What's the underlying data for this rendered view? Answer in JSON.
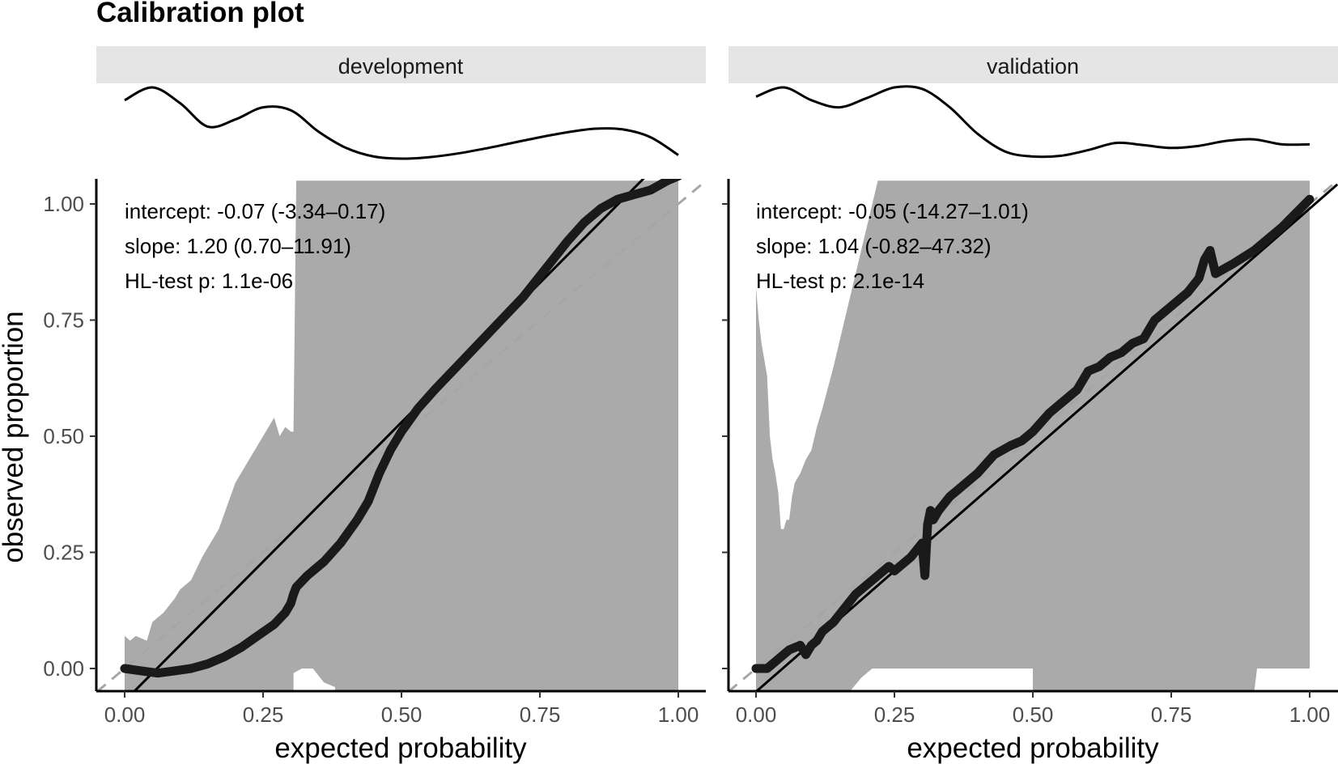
{
  "title": "Calibration plot",
  "xlabel": "expected probability",
  "ylabel": "observed proportion",
  "colors": {
    "strip_bg": "#e5e5e5",
    "ci_ribbon": "#aaaaaa",
    "curve": "#1a1a1a",
    "fit_line": "#000000",
    "diagonal": "#a6a6a6"
  },
  "chart_data": [
    {
      "type": "line",
      "panel": "development",
      "xlim": [
        0,
        1
      ],
      "ylim": [
        0,
        1
      ],
      "x_ticks": [
        "0.00",
        "0.25",
        "0.50",
        "0.75",
        "1.00"
      ],
      "y_ticks": [
        "0.00",
        "0.25",
        "0.50",
        "0.75",
        "1.00"
      ],
      "annotations": [
        "intercept: -0.07 (-3.34–0.17)",
        "slope: 1.20 (0.70–11.91)",
        "HL-test p: 1.1e-06"
      ],
      "reference_line": {
        "style": "dashed",
        "intercept": 0,
        "slope": 1
      },
      "fit_line": {
        "intercept": -0.07,
        "slope": 1.2
      },
      "calibration_curve": {
        "x": [
          0,
          0.03,
          0.06,
          0.09,
          0.12,
          0.15,
          0.18,
          0.21,
          0.24,
          0.27,
          0.29,
          0.3,
          0.305,
          0.31,
          0.33,
          0.36,
          0.39,
          0.42,
          0.44,
          0.46,
          0.48,
          0.5,
          0.53,
          0.56,
          0.6,
          0.64,
          0.68,
          0.72,
          0.76,
          0.8,
          0.83,
          0.86,
          0.89,
          0.92,
          0.95,
          0.98,
          1.0
        ],
        "y": [
          0.0,
          -0.005,
          -0.01,
          -0.005,
          0.0,
          0.01,
          0.025,
          0.045,
          0.07,
          0.095,
          0.12,
          0.14,
          0.16,
          0.175,
          0.2,
          0.23,
          0.27,
          0.32,
          0.36,
          0.42,
          0.47,
          0.51,
          0.56,
          0.6,
          0.65,
          0.7,
          0.75,
          0.8,
          0.86,
          0.92,
          0.96,
          0.99,
          1.01,
          1.02,
          1.03,
          1.05,
          1.06
        ]
      },
      "ci_ribbon": {
        "x": [
          0,
          0.01,
          0.02,
          0.04,
          0.05,
          0.06,
          0.07,
          0.09,
          0.1,
          0.12,
          0.14,
          0.17,
          0.2,
          0.22,
          0.25,
          0.27,
          0.28,
          0.29,
          0.3,
          0.305,
          0.31,
          0.32,
          0.35,
          0.37,
          0.38,
          0.4,
          1.0
        ],
        "lower": [
          -0.05,
          -0.05,
          -0.05,
          -0.05,
          -0.05,
          -0.05,
          -0.05,
          -0.05,
          -0.05,
          -0.05,
          -0.05,
          -0.05,
          -0.05,
          -0.05,
          -0.05,
          -0.05,
          -0.05,
          -0.05,
          -0.05,
          -0.05,
          -0.05,
          -0.05,
          -0.05,
          -0.05,
          -0.05,
          -0.05,
          -0.05
        ],
        "upper": [
          0.07,
          0.06,
          0.07,
          0.06,
          0.1,
          0.11,
          0.12,
          0.15,
          0.17,
          0.19,
          0.24,
          0.3,
          0.4,
          0.44,
          0.5,
          0.54,
          0.5,
          0.52,
          0.51,
          0.51,
          1.05,
          1.05,
          1.05,
          1.05,
          1.05,
          1.05,
          1.05
        ]
      },
      "ci_gap": {
        "x": [
          0.3,
          0.38
        ],
        "description": "ribbon lower bound rises near y=0"
      },
      "density_curve": {
        "x": [
          0,
          0.05,
          0.1,
          0.15,
          0.2,
          0.25,
          0.3,
          0.35,
          0.4,
          0.45,
          0.5,
          0.55,
          0.6,
          0.65,
          0.7,
          0.75,
          0.8,
          0.85,
          0.9,
          0.95,
          1.0
        ],
        "y": [
          0.82,
          1.0,
          0.78,
          0.45,
          0.55,
          0.72,
          0.68,
          0.38,
          0.15,
          0.03,
          0.0,
          0.02,
          0.07,
          0.14,
          0.22,
          0.3,
          0.37,
          0.42,
          0.41,
          0.3,
          0.05
        ]
      }
    },
    {
      "type": "line",
      "panel": "validation",
      "xlim": [
        0,
        1
      ],
      "ylim": [
        0,
        1
      ],
      "x_ticks": [
        "0.00",
        "0.25",
        "0.50",
        "0.75",
        "1.00"
      ],
      "y_ticks": [
        "0.00",
        "0.25",
        "0.50",
        "0.75",
        "1.00"
      ],
      "annotations": [
        "intercept: -0.05 (-14.27–1.01)",
        "slope: 1.04 (-0.82–47.32)",
        "HL-test p: 2.1e-14"
      ],
      "reference_line": {
        "style": "dashed",
        "intercept": 0,
        "slope": 1
      },
      "fit_line": {
        "intercept": -0.05,
        "slope": 1.04
      },
      "calibration_curve": {
        "x": [
          0,
          0.02,
          0.04,
          0.06,
          0.08,
          0.09,
          0.1,
          0.11,
          0.12,
          0.14,
          0.16,
          0.18,
          0.2,
          0.22,
          0.24,
          0.25,
          0.26,
          0.28,
          0.3,
          0.305,
          0.31,
          0.315,
          0.32,
          0.33,
          0.35,
          0.37,
          0.4,
          0.43,
          0.46,
          0.48,
          0.5,
          0.53,
          0.56,
          0.58,
          0.6,
          0.62,
          0.64,
          0.66,
          0.68,
          0.7,
          0.72,
          0.75,
          0.78,
          0.8,
          0.81,
          0.82,
          0.83,
          0.86,
          0.9,
          0.95,
          1.0
        ],
        "y": [
          0.0,
          0.0,
          0.02,
          0.04,
          0.05,
          0.03,
          0.05,
          0.06,
          0.08,
          0.1,
          0.13,
          0.16,
          0.18,
          0.2,
          0.22,
          0.21,
          0.22,
          0.24,
          0.27,
          0.2,
          0.31,
          0.34,
          0.32,
          0.34,
          0.37,
          0.39,
          0.42,
          0.46,
          0.48,
          0.49,
          0.51,
          0.55,
          0.58,
          0.6,
          0.64,
          0.65,
          0.67,
          0.68,
          0.7,
          0.71,
          0.75,
          0.78,
          0.81,
          0.84,
          0.88,
          0.9,
          0.85,
          0.87,
          0.9,
          0.95,
          1.01
        ]
      },
      "ci_ribbon": {
        "x": [
          0,
          0.005,
          0.01,
          0.02,
          0.025,
          0.03,
          0.035,
          0.04,
          0.045,
          0.05,
          0.055,
          0.06,
          0.065,
          0.07,
          0.08,
          0.09,
          0.1,
          0.11,
          0.12,
          0.14,
          0.16,
          0.18,
          0.2,
          0.22,
          0.24,
          0.26,
          0.27,
          1.0
        ],
        "upper": [
          0.82,
          0.75,
          0.7,
          0.63,
          0.5,
          0.45,
          0.42,
          0.38,
          0.3,
          0.3,
          0.32,
          0.32,
          0.37,
          0.4,
          0.42,
          0.45,
          0.47,
          0.52,
          0.56,
          0.65,
          0.75,
          0.85,
          0.95,
          1.05,
          1.05,
          1.05,
          1.05,
          1.05
        ],
        "lower": [
          -0.05,
          -0.05,
          -0.05,
          -0.05,
          -0.05,
          -0.05,
          -0.05,
          -0.05,
          -0.05,
          -0.05,
          -0.05,
          -0.05,
          -0.05,
          -0.05,
          -0.05,
          -0.05,
          -0.05,
          -0.05,
          -0.05,
          -0.05,
          -0.05,
          -0.05,
          -0.05,
          -0.05,
          -0.05,
          -0.05,
          -0.05,
          -0.05
        ]
      },
      "density_curve": {
        "x": [
          0,
          0.05,
          0.1,
          0.15,
          0.2,
          0.25,
          0.3,
          0.35,
          0.4,
          0.45,
          0.5,
          0.55,
          0.6,
          0.65,
          0.7,
          0.75,
          0.8,
          0.85,
          0.9,
          0.95,
          1.0
        ],
        "y": [
          0.87,
          1.0,
          0.82,
          0.72,
          0.85,
          1.0,
          0.98,
          0.72,
          0.35,
          0.1,
          0.03,
          0.04,
          0.12,
          0.22,
          0.19,
          0.15,
          0.18,
          0.25,
          0.27,
          0.2,
          0.2
        ]
      }
    }
  ]
}
